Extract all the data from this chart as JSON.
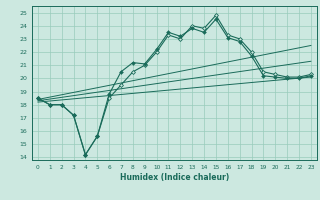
{
  "xlabel": "Humidex (Indice chaleur)",
  "xlim": [
    -0.5,
    23.5
  ],
  "ylim": [
    13.8,
    25.5
  ],
  "yticks": [
    14,
    15,
    16,
    17,
    18,
    19,
    20,
    21,
    22,
    23,
    24,
    25
  ],
  "xticks": [
    0,
    1,
    2,
    3,
    4,
    5,
    6,
    7,
    8,
    9,
    10,
    11,
    12,
    13,
    14,
    15,
    16,
    17,
    18,
    19,
    20,
    21,
    22,
    23
  ],
  "bg_color": "#cce8e0",
  "line_color": "#1a6b5a",
  "grid_color": "#99ccbb",
  "line1": [
    18.5,
    18.0,
    18.0,
    17.2,
    14.2,
    15.6,
    18.8,
    20.5,
    21.2,
    21.1,
    22.2,
    23.5,
    23.2,
    23.8,
    23.5,
    24.5,
    23.1,
    22.8,
    21.7,
    20.2,
    20.1,
    20.0,
    20.0,
    20.2
  ],
  "line2": [
    18.5,
    18.0,
    18.0,
    17.2,
    14.2,
    15.6,
    18.5,
    19.5,
    20.5,
    21.0,
    22.0,
    23.3,
    23.0,
    24.0,
    23.8,
    24.8,
    23.3,
    23.0,
    22.0,
    20.5,
    20.3,
    20.1,
    20.1,
    20.3
  ],
  "trendline1": [
    [
      0,
      23
    ],
    [
      18.4,
      22.5
    ]
  ],
  "trendline2": [
    [
      0,
      23
    ],
    [
      18.3,
      21.3
    ]
  ],
  "trendline3": [
    [
      0,
      23
    ],
    [
      18.2,
      20.1
    ]
  ]
}
